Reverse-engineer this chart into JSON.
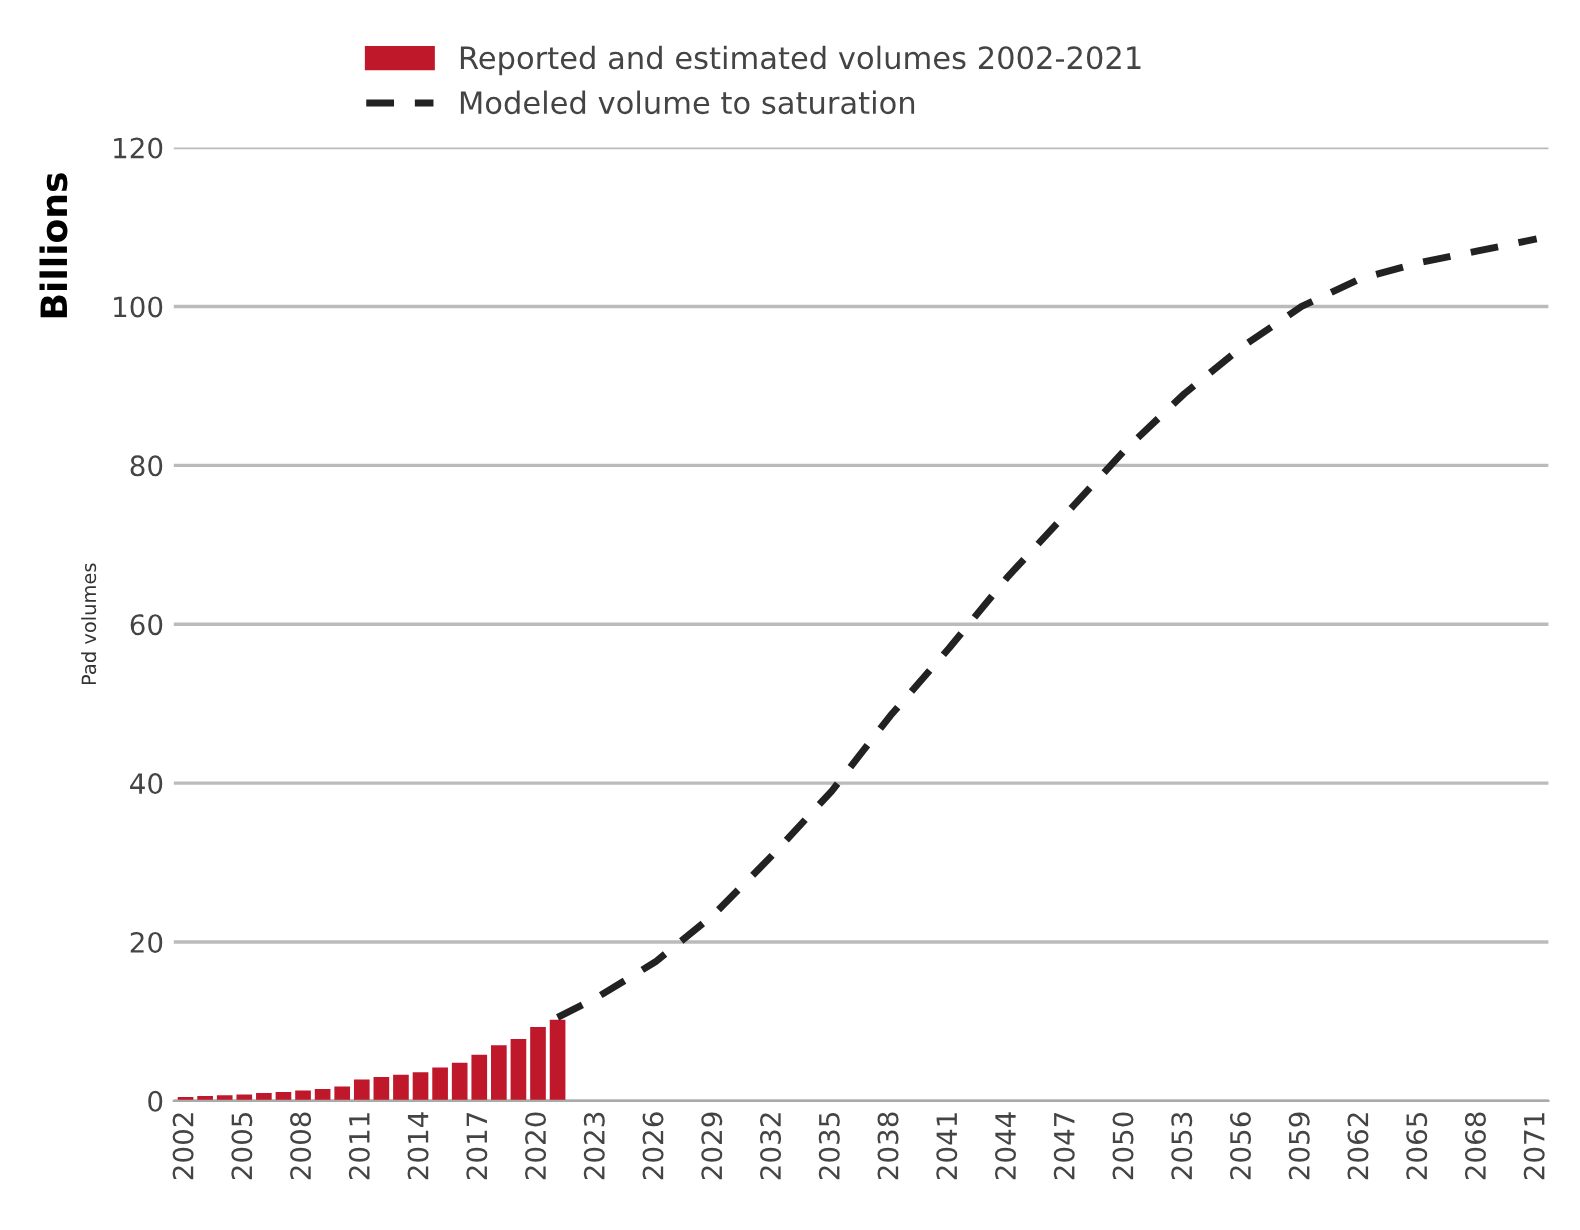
{
  "chart_data": {
    "type": "bar",
    "ylabel": "Pad volumes",
    "annotations": [
      "Billions"
    ],
    "xlim": [
      2001.4,
      2071.6
    ],
    "xticks": [
      2002,
      2005,
      2008,
      2011,
      2014,
      2017,
      2020,
      2023,
      2026,
      2029,
      2032,
      2035,
      2038,
      2041,
      2044,
      2047,
      2050,
      2053,
      2056,
      2059,
      2062,
      2065,
      2068,
      2071
    ],
    "ylim": [
      0,
      120
    ],
    "yticks": [
      0,
      20,
      40,
      60,
      80,
      100,
      120
    ],
    "grid": "y",
    "legend": "top",
    "series": [
      {
        "name": "Reported and estimated volumes 2002-2021",
        "color": "#c0182b",
        "x": [
          2002,
          2003,
          2004,
          2005,
          2006,
          2007,
          2008,
          2009,
          2010,
          2011,
          2012,
          2013,
          2014,
          2015,
          2016,
          2017,
          2018,
          2019,
          2020,
          2021
        ],
        "values": [
          0.5,
          0.6,
          0.7,
          0.8,
          1.0,
          1.1,
          1.3,
          1.5,
          1.8,
          2.7,
          3.0,
          3.3,
          3.6,
          4.2,
          4.8,
          5.8,
          7.0,
          7.8,
          9.3,
          10.2
        ]
      },
      {
        "name": "Modeled volume to saturation",
        "type": "line",
        "color": "#222222",
        "line_style": "dashed",
        "x": [
          2021,
          2023,
          2026,
          2029,
          2032,
          2035,
          2038,
          2041,
          2044,
          2047,
          2050,
          2053,
          2056,
          2059,
          2062,
          2065,
          2068,
          2071
        ],
        "values": [
          10.5,
          13,
          17.5,
          23.5,
          31,
          39,
          48.5,
          57,
          66,
          74,
          82,
          89,
          95,
          100,
          103.5,
          105.5,
          107,
          108.5
        ]
      }
    ]
  }
}
